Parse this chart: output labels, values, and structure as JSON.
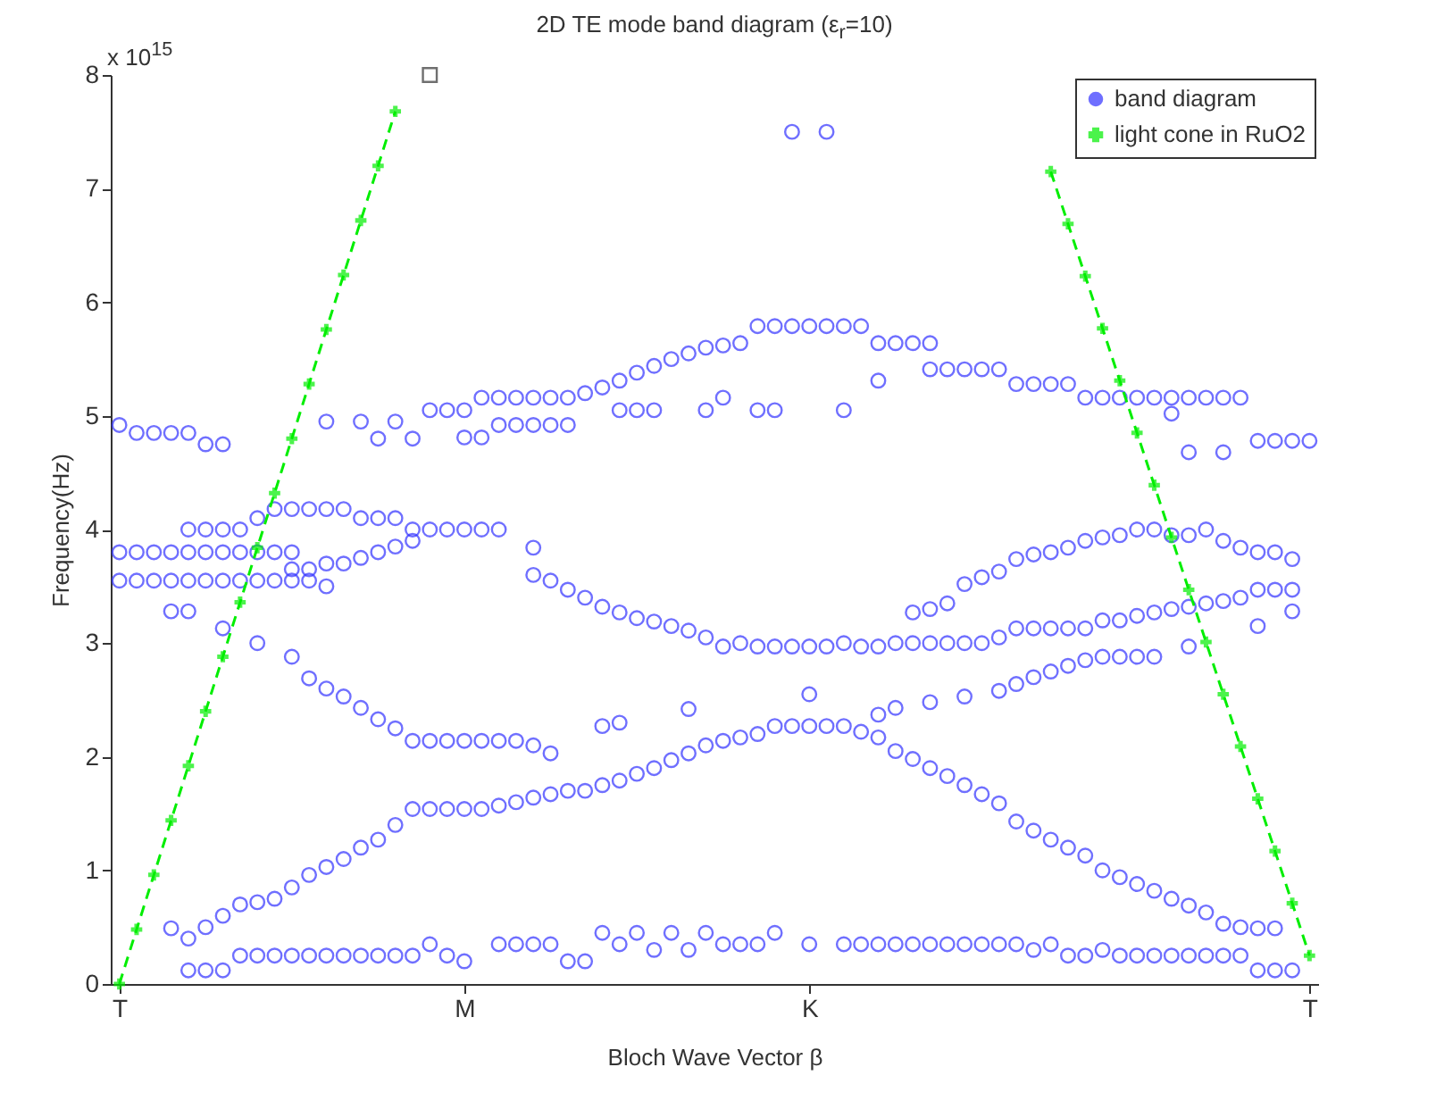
{
  "chart_data": {
    "type": "scatter",
    "title": "2D TE mode band diagram (ε$_{r}$=10)",
    "xlabel": "Bloch Wave Vector β",
    "ylabel": "Frequency(Hz)",
    "annotations": [
      "x 10$^{15}$"
    ],
    "categories": [
      "T",
      null,
      null,
      null,
      null,
      null,
      null,
      null,
      null,
      null,
      null,
      null,
      null,
      null,
      null,
      null,
      null,
      null,
      null,
      null,
      "M",
      null,
      null,
      null,
      null,
      null,
      null,
      null,
      null,
      null,
      null,
      null,
      null,
      null,
      null,
      null,
      null,
      null,
      null,
      null,
      "K",
      null,
      null,
      null,
      null,
      null,
      null,
      null,
      null,
      null,
      null,
      null,
      null,
      null,
      null,
      null,
      null,
      null,
      null,
      null,
      null,
      null,
      null,
      null,
      null,
      null,
      null,
      null,
      null,
      "T"
    ],
    "ylim": [
      0,
      8
    ],
    "yticks": [
      0,
      1,
      2,
      3,
      4,
      5,
      6,
      7,
      8
    ],
    "grid": false,
    "legend": "top right",
    "series": [
      {
        "name": "band diagram",
        "marker": "circle",
        "color": "#3333ff",
        "values": [
          null,
          null,
          null,
          null,
          0.12,
          0.12,
          0.12,
          0.25,
          0.25,
          0.25,
          0.25,
          0.25,
          0.25,
          0.25,
          0.25,
          0.25,
          0.25,
          0.25,
          0.35,
          0.25,
          0.2,
          null,
          0.35,
          0.35,
          0.35,
          0.35,
          0.2,
          0.2,
          0.45,
          0.35,
          0.45,
          0.3,
          0.45,
          0.3,
          0.45,
          0.35,
          0.35,
          0.35,
          0.45,
          null,
          0.35,
          null,
          0.35,
          0.35,
          0.35,
          0.35,
          0.35,
          0.35,
          0.35,
          0.35,
          0.35,
          0.35,
          0.35,
          0.3,
          0.35,
          0.25,
          0.25,
          0.3,
          0.25,
          0.25,
          0.25,
          0.25,
          0.25,
          0.25,
          0.25,
          0.25,
          0.12,
          0.12,
          0.12,
          null
        ]
      },
      {
        "marker": "circle",
        "color": "#3333ff",
        "values": [
          null,
          null,
          null,
          0.49,
          0.4,
          0.5,
          0.6,
          0.7,
          0.72,
          0.75,
          0.85,
          0.96,
          1.03,
          1.1,
          1.2,
          1.27,
          1.4,
          1.54,
          1.54,
          1.54,
          1.54,
          1.54,
          1.57,
          1.6,
          1.64,
          1.67,
          1.7,
          1.7,
          1.75,
          1.79,
          1.85,
          1.9,
          1.97,
          2.03,
          2.1,
          2.14,
          2.17,
          2.2,
          2.27,
          2.27,
          2.27,
          2.27,
          2.27,
          2.22,
          2.17,
          2.05,
          1.98,
          1.9,
          1.83,
          1.75,
          1.67,
          1.59,
          1.43,
          1.35,
          1.27,
          1.2,
          1.13,
          1.0,
          0.94,
          0.88,
          0.82,
          0.75,
          0.69,
          0.63,
          0.53,
          0.5,
          0.49,
          0.49,
          null,
          null
        ]
      },
      {
        "marker": "circle",
        "color": "#3333ff",
        "values": [
          null,
          null,
          null,
          null,
          null,
          null,
          3.13,
          null,
          3.0,
          null,
          2.88,
          2.69,
          2.6,
          2.53,
          2.43,
          2.33,
          2.25,
          2.14,
          2.14,
          2.14,
          2.14,
          2.14,
          2.14,
          2.14,
          2.1,
          2.03,
          null,
          null,
          2.27,
          2.3,
          null,
          null,
          null,
          2.42,
          null,
          null,
          null,
          null,
          null,
          null,
          2.55,
          null,
          null,
          null,
          2.37,
          2.43,
          null,
          2.48,
          null,
          2.53,
          null,
          2.58,
          2.64,
          2.7,
          2.75,
          2.8,
          2.85,
          2.88,
          2.88,
          2.88,
          2.88,
          null,
          2.97,
          null,
          null,
          null,
          null,
          null,
          null,
          null
        ]
      },
      {
        "marker": "circle",
        "color": "#3333ff",
        "values": [
          3.8,
          3.8,
          3.8,
          3.8,
          3.8,
          3.8,
          3.8,
          3.8,
          3.8,
          3.8,
          3.8,
          null,
          3.7,
          3.7,
          3.75,
          3.8,
          3.85,
          3.9,
          4.0,
          4.0,
          4.0,
          4.0,
          4.0,
          null,
          3.84,
          3.55,
          3.47,
          3.4,
          3.32,
          3.27,
          3.22,
          3.19,
          3.15,
          3.11,
          3.05,
          2.97,
          3.0,
          2.97,
          2.97,
          2.97,
          2.97,
          2.97,
          3.0,
          2.97,
          2.97,
          3.0,
          3.0,
          3.0,
          3.0,
          3.0,
          3.0,
          3.05,
          3.13,
          3.13,
          3.13,
          3.13,
          3.13,
          3.2,
          3.2,
          3.24,
          3.27,
          3.3,
          3.32,
          3.35,
          3.37,
          3.4,
          3.47,
          3.47,
          3.47,
          null
        ]
      },
      {
        "marker": "circle",
        "color": "#3333ff",
        "values": [
          3.55,
          3.55,
          3.55,
          3.55,
          3.55,
          3.55,
          3.55,
          3.55,
          3.55,
          3.55,
          3.55,
          3.55,
          3.5,
          null,
          null,
          null,
          null,
          null,
          null,
          null,
          null,
          null,
          null,
          null,
          null,
          null,
          null,
          null,
          null,
          null,
          null,
          null,
          null,
          null,
          null,
          null,
          null,
          null,
          null,
          null,
          null,
          null,
          null,
          null,
          null,
          null,
          null,
          null,
          null,
          null,
          null,
          null,
          null,
          null,
          null,
          null,
          null,
          null,
          null,
          null,
          null,
          null,
          null,
          null,
          null,
          null,
          null,
          null,
          null,
          null
        ]
      },
      {
        "marker": "circle",
        "color": "#3333ff",
        "values": [
          null,
          null,
          null,
          3.28,
          3.28,
          null,
          null,
          null,
          null,
          null,
          3.65,
          3.65,
          null,
          null,
          null,
          null,
          null,
          null,
          null,
          null,
          null,
          null,
          null,
          null,
          3.6,
          null,
          null,
          null,
          null,
          null,
          null,
          null,
          null,
          null,
          null,
          null,
          null,
          null,
          null,
          null,
          null,
          null,
          null,
          null,
          null,
          null,
          null,
          null,
          null,
          null,
          null,
          null,
          null,
          null,
          null,
          null,
          null,
          null,
          null,
          null,
          null,
          null,
          null,
          null,
          null,
          null,
          3.15,
          null,
          3.28,
          null
        ]
      },
      {
        "marker": "circle",
        "color": "#3333ff",
        "values": [
          null,
          null,
          null,
          null,
          4.0,
          4.0,
          4.0,
          4.0,
          4.1,
          4.18,
          4.18,
          4.18,
          4.18,
          4.18,
          4.1,
          4.1,
          4.1,
          4.0,
          null,
          null,
          null,
          null,
          null,
          null,
          null,
          null,
          null,
          null,
          null,
          null,
          null,
          null,
          null,
          null,
          null,
          null,
          null,
          null,
          null,
          null,
          null,
          null,
          null,
          null,
          null,
          null,
          3.27,
          3.3,
          3.35,
          3.52,
          3.58,
          3.63,
          3.74,
          3.78,
          3.8,
          3.84,
          3.9,
          3.93,
          3.95,
          4.0,
          4.0,
          3.95,
          3.95,
          4.0,
          3.9,
          3.84,
          3.8,
          3.8,
          3.74,
          null
        ]
      },
      {
        "marker": "circle",
        "color": "#3333ff",
        "values": [
          4.92,
          4.85,
          4.85,
          4.85,
          4.85,
          4.75,
          4.75,
          null,
          null,
          null,
          null,
          null,
          4.95,
          null,
          4.95,
          null,
          4.95,
          null,
          5.05,
          5.05,
          5.05,
          5.16,
          5.16,
          5.16,
          5.16,
          5.16,
          5.16,
          5.2,
          5.25,
          5.31,
          5.38,
          5.44,
          5.5,
          5.55,
          5.6,
          5.62,
          5.64,
          5.79,
          5.79,
          5.79,
          5.79,
          5.79,
          5.79,
          5.79,
          5.64,
          5.64,
          5.64,
          5.64,
          5.41,
          5.41,
          5.41,
          5.41,
          5.28,
          5.28,
          5.28,
          5.28,
          5.16,
          5.16,
          5.16,
          5.16,
          5.16,
          5.16,
          5.16,
          5.16,
          5.16,
          5.16,
          4.78,
          4.78,
          4.78,
          4.78
        ]
      },
      {
        "marker": "circle",
        "color": "#3333ff",
        "values": [
          null,
          null,
          null,
          null,
          null,
          null,
          null,
          null,
          null,
          null,
          null,
          null,
          null,
          null,
          null,
          4.8,
          null,
          4.8,
          null,
          null,
          4.81,
          4.81,
          4.92,
          4.92,
          4.92,
          4.92,
          4.92,
          null,
          null,
          5.05,
          5.05,
          5.05,
          null,
          null,
          5.05,
          5.16,
          null,
          5.05,
          5.05,
          7.5,
          null,
          7.5,
          5.05,
          null,
          5.31,
          null,
          null,
          5.41,
          null,
          null,
          null,
          null,
          null,
          null,
          null,
          null,
          null,
          null,
          null,
          null,
          null,
          5.02,
          4.68,
          null,
          4.68,
          null,
          null,
          null,
          null,
          null
        ]
      },
      {
        "name": "light cone in RuO2",
        "type": "line",
        "marker": "cross",
        "line_style": "dashed",
        "color": "#00ee00",
        "values": [
          0,
          0.48,
          0.96,
          1.44,
          1.92,
          2.4,
          2.88,
          3.36,
          3.84,
          4.32,
          4.8,
          5.28,
          5.76,
          6.24,
          6.72,
          7.2,
          7.68,
          null,
          null,
          null,
          null,
          null,
          null,
          null,
          null,
          null,
          null,
          null,
          null,
          null,
          null,
          null,
          null,
          null,
          null,
          null,
          null,
          null,
          null,
          null,
          null,
          null,
          null,
          null,
          null,
          null,
          null,
          null,
          null,
          null,
          null,
          null,
          null,
          null,
          7.15,
          6.69,
          6.23,
          5.77,
          5.31,
          4.85,
          4.39,
          3.93,
          3.47,
          3.01,
          2.55,
          2.09,
          1.63,
          1.17,
          0.71,
          0.25
        ]
      },
      {
        "marker": "square",
        "color": "#333333",
        "values": [
          null,
          null,
          null,
          null,
          null,
          null,
          null,
          null,
          null,
          null,
          null,
          null,
          null,
          null,
          null,
          null,
          null,
          null,
          8.0,
          null,
          null,
          null,
          null,
          null,
          null,
          null,
          null,
          null,
          null,
          null,
          null,
          null,
          null,
          null,
          null,
          null,
          null,
          null,
          null,
          null,
          null,
          null,
          null,
          null,
          null,
          null,
          null,
          null,
          null,
          null,
          null,
          null,
          null,
          null,
          null,
          null,
          null,
          null,
          null,
          null,
          null,
          null,
          null,
          null,
          null,
          null,
          null,
          null,
          null,
          null
        ]
      }
    ]
  }
}
